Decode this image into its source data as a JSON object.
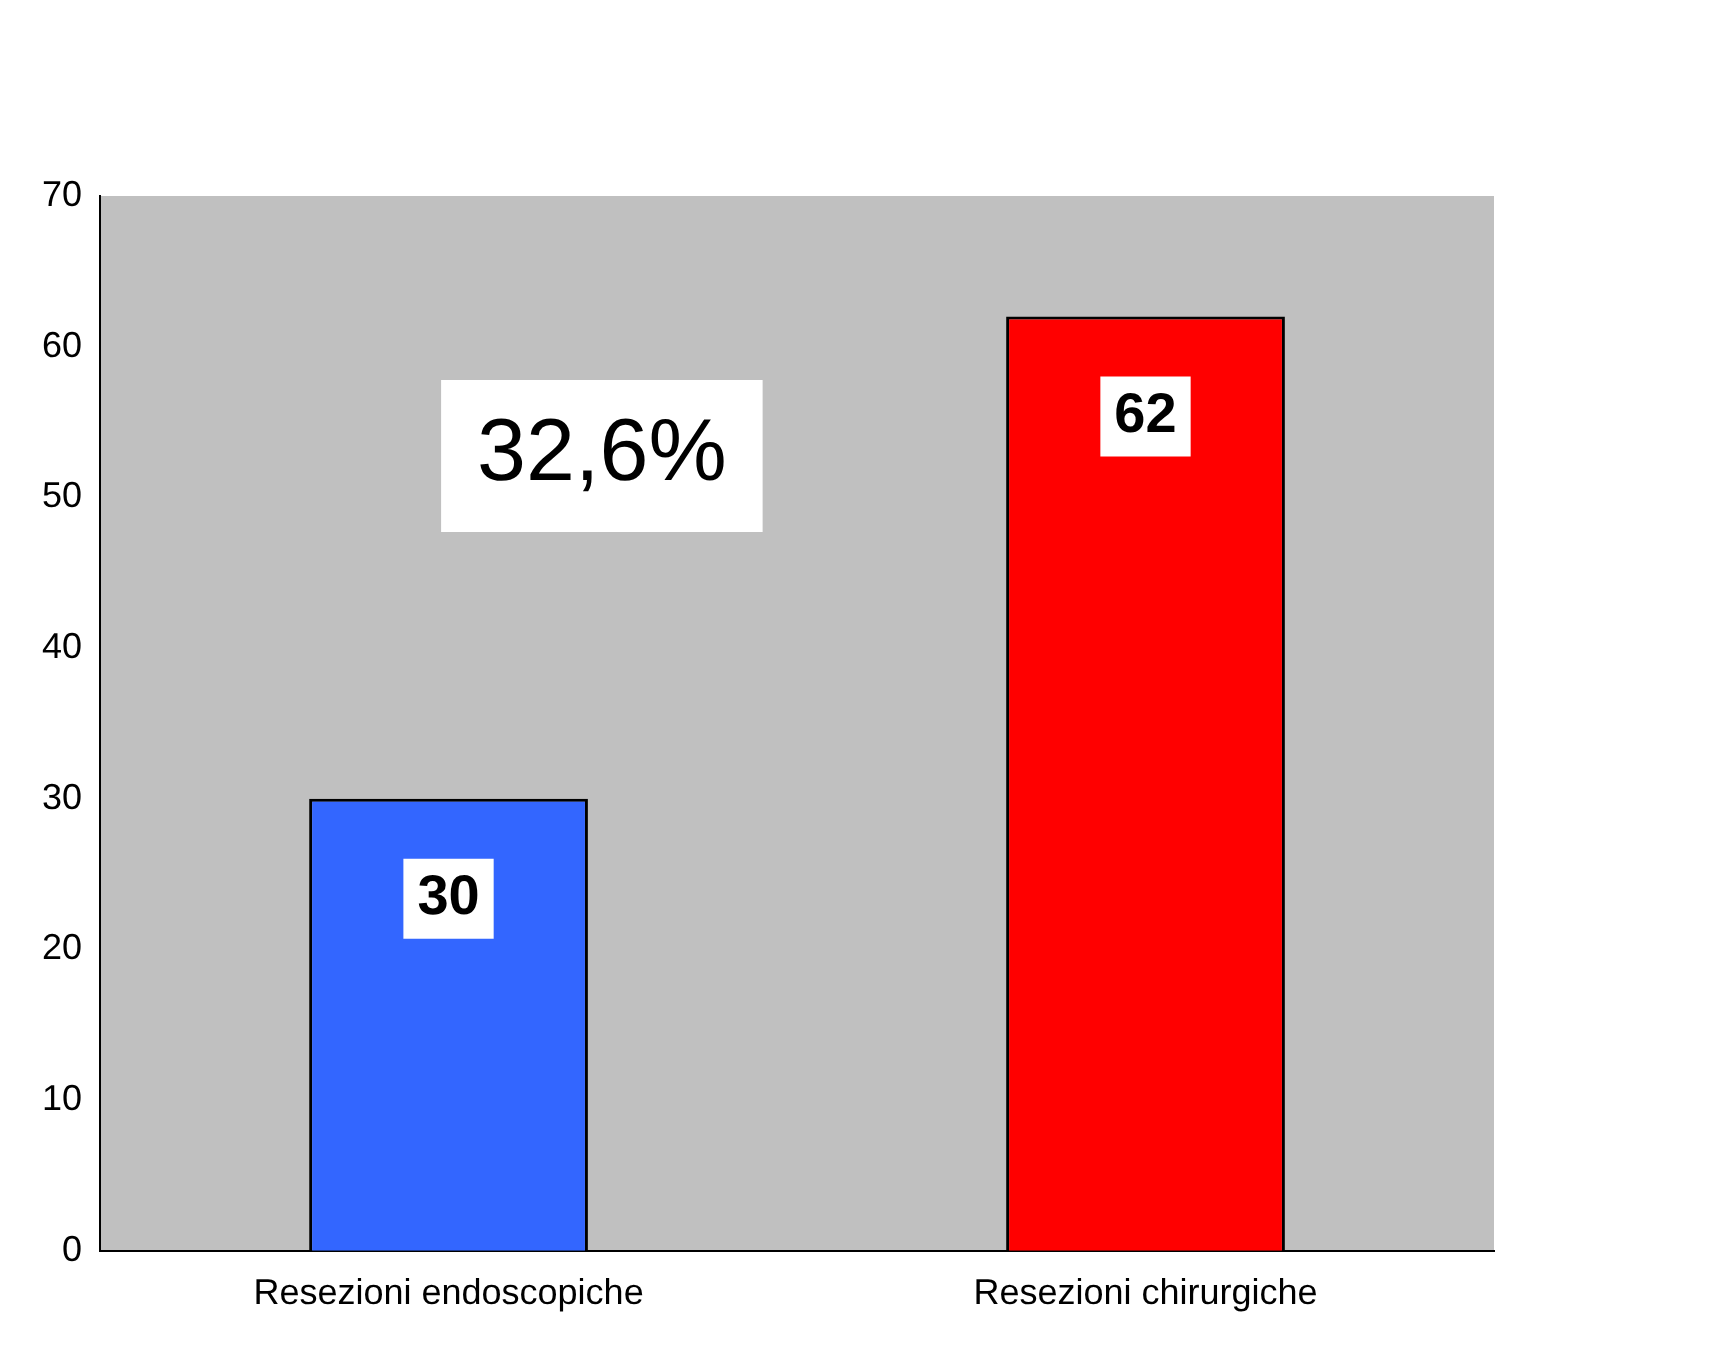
{
  "chart_data": {
    "type": "bar",
    "categories": [
      "Resezioni endoscopiche",
      "Resezioni chirurgiche"
    ],
    "values": [
      30,
      62
    ],
    "colors": [
      "#3366ff",
      "#ff0000"
    ],
    "ylim": [
      0,
      70
    ],
    "yticks": [
      0,
      10,
      20,
      30,
      40,
      50,
      60,
      70
    ],
    "grid": false,
    "legend": false,
    "data_labels": true,
    "annotations": [
      "32,6%"
    ]
  }
}
